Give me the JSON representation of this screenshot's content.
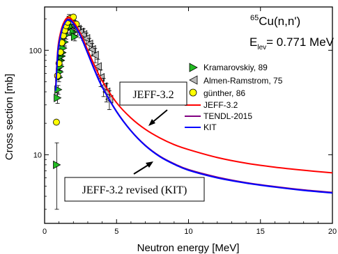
{
  "chart_data": {
    "type": "line",
    "title": "65Cu(n,n')",
    "title_parts": {
      "sup": "65",
      "main": "Cu(n,n')"
    },
    "subtitle": "E_lev= 0.771 MeV",
    "subtitle_parts": {
      "main": "E",
      "sub": "lev",
      "rest": "= 0.771 MeV"
    },
    "xlabel": "Neutron energy [MeV]",
    "ylabel": "Cross section [mb]",
    "xlim": [
      0,
      20
    ],
    "ylim": [
      2.2,
      260
    ],
    "yscale": "log",
    "x_ticks": [
      0,
      5,
      10,
      15,
      20
    ],
    "x_tick_labels": [
      "0",
      "5",
      "10",
      "15",
      "20"
    ],
    "y_ticks": [
      10,
      100
    ],
    "y_tick_labels": [
      "10",
      "100"
    ],
    "grid": false,
    "legend_position": "right",
    "series": [
      {
        "name": "JEFF-3.2",
        "kind": "line",
        "color": "#ff0000",
        "x": [
          0.77,
          0.9,
          1.0,
          1.2,
          1.4,
          1.6,
          1.8,
          2.0,
          2.3,
          2.6,
          3.0,
          3.5,
          4.0,
          5.0,
          6.0,
          7.0,
          8.0,
          9.0,
          10.0,
          12.0,
          14.0,
          16.0,
          18.0,
          20.0
        ],
        "y": [
          45,
          95,
          125,
          165,
          192,
          206,
          203,
          188,
          162,
          135,
          100,
          70,
          51,
          31.5,
          22.5,
          17.5,
          14.5,
          12.5,
          11.2,
          9.4,
          8.3,
          7.6,
          7.1,
          6.7
        ]
      },
      {
        "name": "TENDL-2015",
        "kind": "line",
        "color": "#800080",
        "x": [
          0.77,
          0.9,
          1.0,
          1.2,
          1.4,
          1.6,
          1.8,
          2.0,
          2.3,
          2.6,
          3.0,
          3.5,
          4.0,
          5.0,
          6.0,
          7.0,
          8.0,
          9.0,
          10.0,
          12.0,
          14.0,
          16.0,
          18.0,
          20.0
        ],
        "y": [
          42,
          90,
          118,
          158,
          185,
          198,
          196,
          182,
          156,
          128,
          94,
          64,
          45,
          26,
          17,
          12.3,
          9.7,
          8.2,
          7.2,
          6.1,
          5.4,
          4.95,
          4.6,
          4.35
        ]
      },
      {
        "name": "KIT",
        "kind": "line",
        "color": "#0000ff",
        "x": [
          0.77,
          0.9,
          1.0,
          1.2,
          1.4,
          1.6,
          1.8,
          2.0,
          2.3,
          2.6,
          3.0,
          3.5,
          4.0,
          5.0,
          6.0,
          7.0,
          8.0,
          9.0,
          10.0,
          12.0,
          14.0,
          16.0,
          18.0,
          20.0
        ],
        "y": [
          41,
          88,
          115,
          155,
          182,
          195,
          193,
          180,
          155,
          127,
          93,
          63,
          44.5,
          25.8,
          16.9,
          12.2,
          9.6,
          8.1,
          7.1,
          6.0,
          5.35,
          4.9,
          4.55,
          4.3
        ]
      },
      {
        "name": "Kramarovskiy, 89",
        "kind": "scatter",
        "marker": "triangle-right",
        "color": "#22bb22",
        "x": [
          0.85,
          0.9,
          0.95,
          1.0,
          1.05,
          1.1,
          1.15,
          1.2,
          1.25,
          1.3,
          1.4,
          1.5,
          1.6,
          1.7,
          1.8,
          1.9,
          2.0,
          2.1
        ],
        "y": [
          8,
          35,
          42,
          55,
          62,
          70,
          80,
          88,
          95,
          105,
          120,
          140,
          160,
          180,
          195,
          170,
          150,
          135
        ],
        "err": [
          5,
          4,
          4,
          5,
          5,
          6,
          7,
          8,
          8,
          9,
          10,
          12,
          14,
          15,
          16,
          14,
          13,
          12
        ]
      },
      {
        "name": "Almen-Ramstrom, 75",
        "kind": "scatter",
        "marker": "triangle-left",
        "color": "#bbbbbb",
        "x": [
          1.7,
          1.9,
          2.1,
          2.3,
          2.5,
          2.7,
          2.9,
          3.1,
          3.3,
          3.5,
          3.7,
          3.9,
          4.1,
          4.3,
          4.5
        ],
        "y": [
          198,
          185,
          172,
          160,
          150,
          142,
          130,
          115,
          102,
          90,
          70,
          55,
          45,
          40,
          34
        ],
        "err": [
          22,
          22,
          20,
          20,
          18,
          18,
          16,
          15,
          14,
          14,
          12,
          10,
          9,
          8,
          7
        ]
      },
      {
        "name": "günther, 86",
        "kind": "scatter",
        "marker": "circle",
        "color": "#ffff00",
        "x": [
          0.82,
          0.9,
          1.0,
          1.1,
          1.2,
          1.3,
          1.4,
          1.5,
          1.6,
          1.8,
          2.0,
          2.2
        ],
        "y": [
          20.5,
          57,
          75,
          96,
          118,
          138,
          155,
          172,
          186,
          202,
          208,
          178
        ]
      }
    ],
    "annotations": [
      {
        "text": "JEFF-3.2"
      },
      {
        "text": "JEFF-3.2 revised (KIT)"
      }
    ]
  }
}
